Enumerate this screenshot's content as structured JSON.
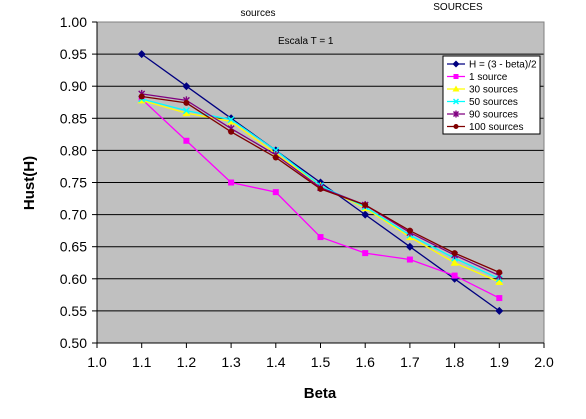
{
  "chart_data": {
    "type": "line",
    "xlabel": "Beta",
    "ylabel": "Hust(H)",
    "xlim": [
      1.0,
      2.0
    ],
    "ylim": [
      0.5,
      1.0
    ],
    "x_ticks": [
      "1.0",
      "1.1",
      "1.2",
      "1.3",
      "1.4",
      "1.5",
      "1.6",
      "1.7",
      "1.8",
      "1.9",
      "2.0"
    ],
    "y_ticks": [
      "0.50",
      "0.55",
      "0.60",
      "0.65",
      "0.70",
      "0.75",
      "0.80",
      "0.85",
      "0.90",
      "0.95",
      "1.00"
    ],
    "grid": "horizontal",
    "legend_position": "right",
    "annotations": {
      "top_left": "sources",
      "top_right": "SOURCES",
      "inner": "Escala T = 1"
    },
    "x": [
      1.1,
      1.2,
      1.3,
      1.4,
      1.5,
      1.6,
      1.7,
      1.8,
      1.9
    ],
    "series": [
      {
        "name": "H = (3 - beta)/2",
        "color": "#000080",
        "marker": "diamond",
        "values": [
          0.95,
          0.9,
          0.85,
          0.8,
          0.75,
          0.7,
          0.65,
          0.6,
          0.55
        ]
      },
      {
        "name": "1  source",
        "color": "#ff00ff",
        "marker": "square",
        "values": [
          0.88,
          0.815,
          0.75,
          0.735,
          0.665,
          0.64,
          0.63,
          0.605,
          0.57
        ]
      },
      {
        "name": "30 sources",
        "color": "#ffff00",
        "marker": "triangle",
        "values": [
          0.878,
          0.858,
          0.845,
          0.795,
          0.745,
          0.71,
          0.665,
          0.625,
          0.595
        ]
      },
      {
        "name": "50 sources",
        "color": "#00ffff",
        "marker": "x",
        "values": [
          0.88,
          0.862,
          0.848,
          0.8,
          0.745,
          0.712,
          0.668,
          0.632,
          0.6
        ]
      },
      {
        "name": "90 sources",
        "color": "#800080",
        "marker": "star",
        "values": [
          0.888,
          0.878,
          0.834,
          0.793,
          0.742,
          0.715,
          0.672,
          0.637,
          0.605
        ]
      },
      {
        "name": "100 sources",
        "color": "#800000",
        "marker": "circle",
        "values": [
          0.884,
          0.874,
          0.829,
          0.789,
          0.74,
          0.715,
          0.675,
          0.64,
          0.61
        ]
      }
    ]
  }
}
